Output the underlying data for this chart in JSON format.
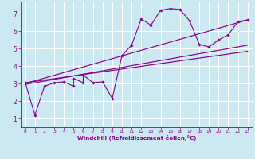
{
  "title": "",
  "xlabel": "Windchill (Refroidissement éolien,°C)",
  "ylabel": "",
  "bg_color": "#cce8f0",
  "grid_color": "#ffffff",
  "line_color": "#880088",
  "marker_color": "#880088",
  "xlim": [
    -0.5,
    23.5
  ],
  "ylim": [
    0.5,
    7.7
  ],
  "xticks": [
    0,
    1,
    2,
    3,
    4,
    5,
    6,
    7,
    8,
    9,
    10,
    11,
    12,
    13,
    14,
    15,
    16,
    17,
    18,
    19,
    20,
    21,
    22,
    23
  ],
  "yticks": [
    1,
    2,
    3,
    4,
    5,
    6,
    7
  ],
  "scatter_x": [
    0,
    1,
    2,
    3,
    4,
    5,
    5,
    6,
    6,
    7,
    8,
    9,
    10,
    11,
    12,
    13,
    14,
    15,
    16,
    17,
    18,
    19,
    20,
    21,
    22,
    23
  ],
  "scatter_y": [
    3.05,
    1.2,
    2.85,
    3.05,
    3.1,
    2.85,
    3.3,
    3.05,
    3.5,
    3.05,
    3.1,
    2.15,
    4.6,
    5.2,
    6.7,
    6.35,
    7.2,
    7.3,
    7.25,
    6.6,
    5.25,
    5.1,
    5.5,
    5.8,
    6.55,
    6.65
  ],
  "reg_lines": [
    {
      "x": [
        0,
        23
      ],
      "y": [
        2.95,
        5.2
      ]
    },
    {
      "x": [
        0,
        23
      ],
      "y": [
        3.05,
        4.85
      ]
    },
    {
      "x": [
        0,
        23
      ],
      "y": [
        3.0,
        6.65
      ]
    }
  ]
}
